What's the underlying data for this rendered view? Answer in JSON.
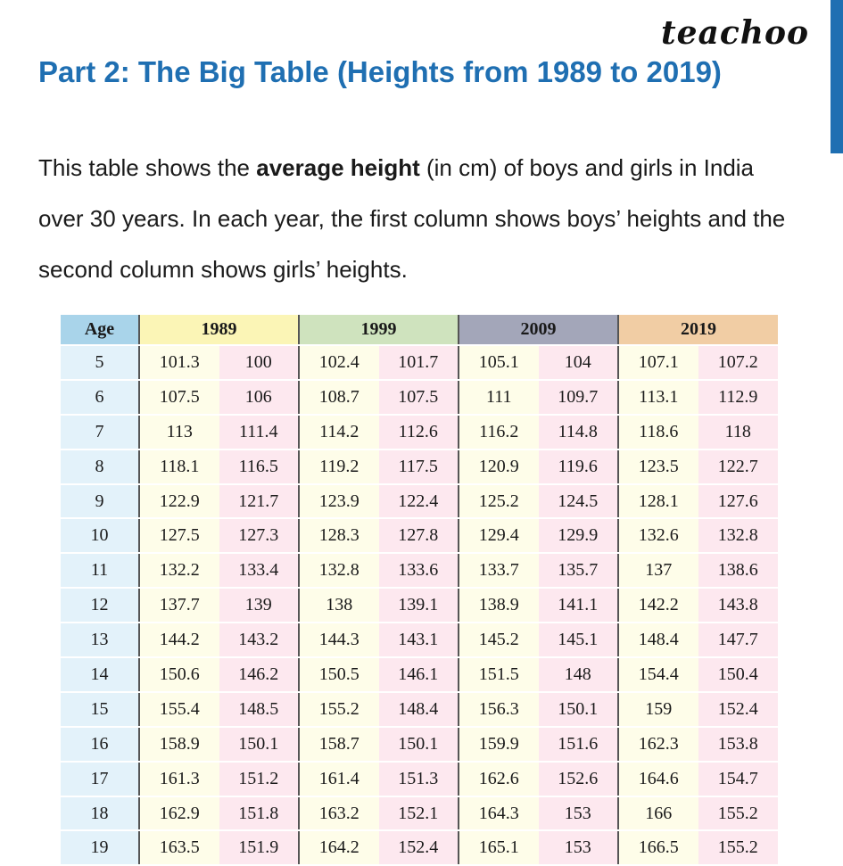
{
  "brand": {
    "logo_text": "teachoo",
    "accent_color": "#1f6fb2"
  },
  "heading": {
    "title": "Part 2: The Big Table (Heights from 1989 to 2019)"
  },
  "description": {
    "before": "This table shows the ",
    "bold": "average height",
    "after": " (in cm) of boys and girls in India over 30 years. In each year, the first column shows boys’ heights and the second column shows girls’ heights."
  },
  "table": {
    "age_header": "Age",
    "years": [
      "1989",
      "1999",
      "2009",
      "2019"
    ],
    "rows": [
      {
        "age": "5",
        "values": [
          "101.3",
          "100",
          "102.4",
          "101.7",
          "105.1",
          "104",
          "107.1",
          "107.2"
        ]
      },
      {
        "age": "6",
        "values": [
          "107.5",
          "106",
          "108.7",
          "107.5",
          "111",
          "109.7",
          "113.1",
          "112.9"
        ]
      },
      {
        "age": "7",
        "values": [
          "113",
          "111.4",
          "114.2",
          "112.6",
          "116.2",
          "114.8",
          "118.6",
          "118"
        ]
      },
      {
        "age": "8",
        "values": [
          "118.1",
          "116.5",
          "119.2",
          "117.5",
          "120.9",
          "119.6",
          "123.5",
          "122.7"
        ]
      },
      {
        "age": "9",
        "values": [
          "122.9",
          "121.7",
          "123.9",
          "122.4",
          "125.2",
          "124.5",
          "128.1",
          "127.6"
        ]
      },
      {
        "age": "10",
        "values": [
          "127.5",
          "127.3",
          "128.3",
          "127.8",
          "129.4",
          "129.9",
          "132.6",
          "132.8"
        ]
      },
      {
        "age": "11",
        "values": [
          "132.2",
          "133.4",
          "132.8",
          "133.6",
          "133.7",
          "135.7",
          "137",
          "138.6"
        ]
      },
      {
        "age": "12",
        "values": [
          "137.7",
          "139",
          "138",
          "139.1",
          "138.9",
          "141.1",
          "142.2",
          "143.8"
        ]
      },
      {
        "age": "13",
        "values": [
          "144.2",
          "143.2",
          "144.3",
          "143.1",
          "145.2",
          "145.1",
          "148.4",
          "147.7"
        ]
      },
      {
        "age": "14",
        "values": [
          "150.6",
          "146.2",
          "150.5",
          "146.1",
          "151.5",
          "148",
          "154.4",
          "150.4"
        ]
      },
      {
        "age": "15",
        "values": [
          "155.4",
          "148.5",
          "155.2",
          "148.4",
          "156.3",
          "150.1",
          "159",
          "152.4"
        ]
      },
      {
        "age": "16",
        "values": [
          "158.9",
          "150.1",
          "158.7",
          "150.1",
          "159.9",
          "151.6",
          "162.3",
          "153.8"
        ]
      },
      {
        "age": "17",
        "values": [
          "161.3",
          "151.2",
          "161.4",
          "151.3",
          "162.6",
          "152.6",
          "164.6",
          "154.7"
        ]
      },
      {
        "age": "18",
        "values": [
          "162.9",
          "151.8",
          "163.2",
          "152.1",
          "164.3",
          "153",
          "166",
          "155.2"
        ]
      },
      {
        "age": "19",
        "values": [
          "163.5",
          "151.9",
          "164.2",
          "152.4",
          "165.1",
          "153",
          "166.5",
          "155.2"
        ]
      }
    ]
  }
}
